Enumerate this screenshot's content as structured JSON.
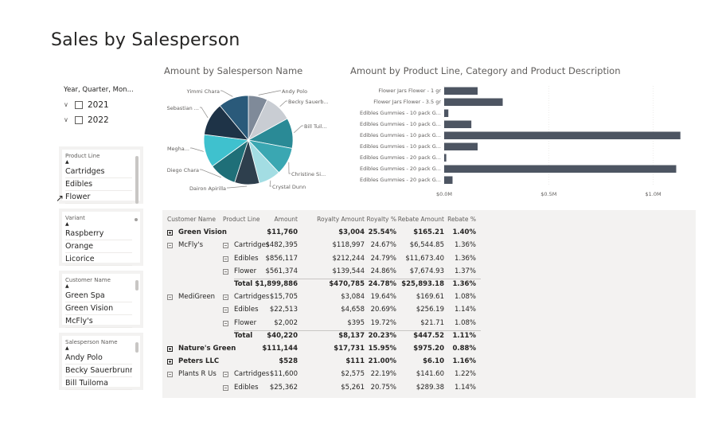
{
  "page": {
    "title": "Sales by Salesperson"
  },
  "date_slicer": {
    "header": "Year, Quarter, Mon...",
    "years": [
      "2021",
      "2022"
    ]
  },
  "slicers": [
    {
      "header": "Product Line",
      "items": [
        "Cartridges",
        "Edibles",
        "Flower"
      ]
    },
    {
      "header": "Variant",
      "items": [
        "Raspberry",
        "Orange",
        "Licorice"
      ]
    },
    {
      "header": "Customer Name",
      "items": [
        "Green Spa",
        "Green Vision",
        "McFly's"
      ]
    },
    {
      "header": "Salesperson Name",
      "items": [
        "Andy Polo",
        "Becky Sauerbrunn",
        "Bill Tuiloma"
      ]
    }
  ],
  "pie": {
    "title": "Amount by Salesperson Name",
    "labels": [
      "Andy Polo",
      "Becky Sauerb...",
      "Bill Tuil...",
      "Christine Si...",
      "Crystal Dunn",
      "Dairon Apirilla",
      "Diego Chara",
      "Megha...",
      "Sebastian ...",
      "Yimmi Chara"
    ],
    "shares": [
      7,
      10,
      11,
      10,
      8,
      9,
      10,
      12,
      12,
      11
    ],
    "colors": [
      "#7f8a99",
      "#c9cdd3",
      "#2a8a96",
      "#3aa7b2",
      "#a3dde3",
      "#2e3f4d",
      "#1f6f78",
      "#3fc1ce",
      "#1e3347",
      "#2a5a7a"
    ]
  },
  "bar": {
    "title": "Amount by Product Line, Category and Product Description",
    "categories": [
      "Flower Jars Flower - 1 gr",
      "Flower Jars Flower - 3.5 gr",
      "Edibles Gummies - 10 pack G...",
      "Edibles Gummies - 10 pack G...",
      "Edibles Gummies - 10 pack G...",
      "Edibles Gummies - 10 pack G...",
      "Edibles Gummies - 20 pack G...",
      "Edibles Gummies - 20 pack G...",
      "Edibles Gummies - 20 pack G..."
    ],
    "values": [
      0.16,
      0.28,
      0.02,
      0.13,
      1.13,
      0.16,
      0.01,
      1.11,
      0.04
    ],
    "ticks": [
      {
        "v": 0,
        "label": "$0.0M"
      },
      {
        "v": 0.5,
        "label": "$0.5M"
      },
      {
        "v": 1.0,
        "label": "$1.0M"
      }
    ],
    "xmax": 1.15,
    "color": "#4d5562"
  },
  "matrix": {
    "columns": [
      "Customer Name",
      "Product Line",
      "Amount",
      "Royalty Amount",
      "Royalty %",
      "Rebate Amount",
      "Rebate %"
    ],
    "rows": [
      {
        "kind": "customer",
        "bold": true,
        "exp": "plus",
        "customer": "Green Vision",
        "line": "",
        "amount": "$11,760",
        "royalty": "$3,004",
        "royalty_pct": "25.54%",
        "rebate": "$165.21",
        "rebate_pct": "1.40%"
      },
      {
        "kind": "detail",
        "bold": false,
        "exp": "minus",
        "customer": "McFly's",
        "lineexp": true,
        "line": "Cartridges",
        "amount": "$482,395",
        "royalty": "$118,997",
        "royalty_pct": "24.67%",
        "rebate": "$6,544.85",
        "rebate_pct": "1.36%"
      },
      {
        "kind": "detail",
        "bold": false,
        "exp": "",
        "customer": "",
        "lineexp": true,
        "line": "Edibles",
        "amount": "$856,117",
        "royalty": "$212,244",
        "royalty_pct": "24.79%",
        "rebate": "$11,673.40",
        "rebate_pct": "1.36%"
      },
      {
        "kind": "detail",
        "bold": false,
        "exp": "",
        "customer": "",
        "lineexp": true,
        "line": "Flower",
        "amount": "$561,374",
        "royalty": "$139,544",
        "royalty_pct": "24.86%",
        "rebate": "$7,674.93",
        "rebate_pct": "1.37%"
      },
      {
        "kind": "total",
        "bold": true,
        "exp": "",
        "customer": "",
        "lineexp": false,
        "line": "Total",
        "amount": "$1,899,886",
        "royalty": "$470,785",
        "royalty_pct": "24.78%",
        "rebate": "$25,893.18",
        "rebate_pct": "1.36%"
      },
      {
        "kind": "detail",
        "bold": false,
        "exp": "minus",
        "customer": "MediGreen",
        "lineexp": true,
        "line": "Cartridges",
        "amount": "$15,705",
        "royalty": "$3,084",
        "royalty_pct": "19.64%",
        "rebate": "$169.61",
        "rebate_pct": "1.08%"
      },
      {
        "kind": "detail",
        "bold": false,
        "exp": "",
        "customer": "",
        "lineexp": true,
        "line": "Edibles",
        "amount": "$22,513",
        "royalty": "$4,658",
        "royalty_pct": "20.69%",
        "rebate": "$256.19",
        "rebate_pct": "1.14%"
      },
      {
        "kind": "detail",
        "bold": false,
        "exp": "",
        "customer": "",
        "lineexp": true,
        "line": "Flower",
        "amount": "$2,002",
        "royalty": "$395",
        "royalty_pct": "19.72%",
        "rebate": "$21.71",
        "rebate_pct": "1.08%"
      },
      {
        "kind": "total",
        "bold": true,
        "exp": "",
        "customer": "",
        "lineexp": false,
        "line": "Total",
        "amount": "$40,220",
        "royalty": "$8,137",
        "royalty_pct": "20.23%",
        "rebate": "$447.52",
        "rebate_pct": "1.11%"
      },
      {
        "kind": "customer",
        "bold": true,
        "exp": "plus",
        "customer": "Nature's Green",
        "line": "",
        "amount": "$111,144",
        "royalty": "$17,731",
        "royalty_pct": "15.95%",
        "rebate": "$975.20",
        "rebate_pct": "0.88%"
      },
      {
        "kind": "customer",
        "bold": true,
        "exp": "plus",
        "customer": "Peters LLC",
        "line": "",
        "amount": "$528",
        "royalty": "$111",
        "royalty_pct": "21.00%",
        "rebate": "$6.10",
        "rebate_pct": "1.16%"
      },
      {
        "kind": "detail",
        "bold": false,
        "exp": "minus",
        "customer": "Plants R Us",
        "lineexp": true,
        "line": "Cartridges",
        "amount": "$11,600",
        "royalty": "$2,575",
        "royalty_pct": "22.19%",
        "rebate": "$141.60",
        "rebate_pct": "1.22%"
      },
      {
        "kind": "detail",
        "bold": false,
        "exp": "",
        "customer": "",
        "lineexp": true,
        "line": "Edibles",
        "amount": "$25,362",
        "royalty": "$5,261",
        "royalty_pct": "20.75%",
        "rebate": "$289.38",
        "rebate_pct": "1.14%"
      }
    ]
  },
  "icons": {
    "chevron": "chevron-down-icon",
    "expander": "expand-collapse-icon",
    "cursor": "mouse-pointer-icon"
  }
}
